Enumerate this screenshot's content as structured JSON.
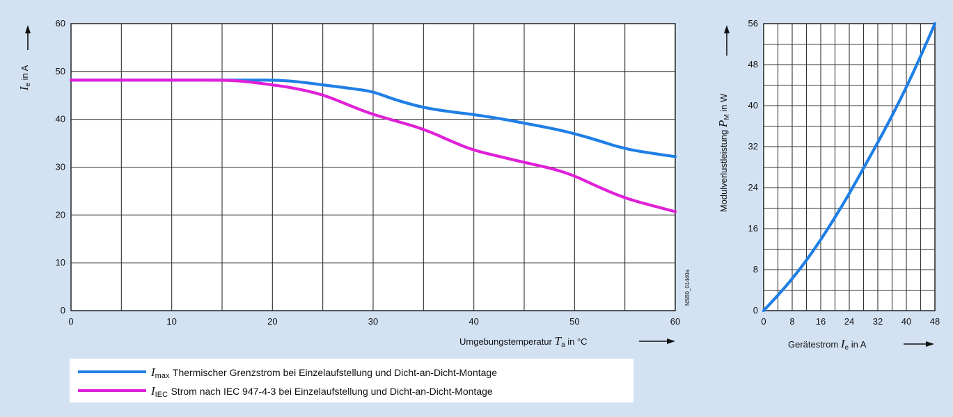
{
  "chart_data": [
    {
      "type": "line",
      "xlabel": {
        "text": "Umgebungstemperatur",
        "symbol": "T",
        "sub": "a",
        "unit": "in °C"
      },
      "ylabel": {
        "symbol": "I",
        "sub": "e",
        "unit": "in A"
      },
      "xlim": [
        0,
        60
      ],
      "ylim": [
        0,
        60
      ],
      "x_ticks": [
        0,
        10,
        20,
        30,
        40,
        50,
        60
      ],
      "y_ticks": [
        0,
        10,
        20,
        30,
        40,
        50,
        60
      ],
      "grid": true,
      "series": [
        {
          "name": "I max Thermischer Grenzstrom bei Einzelaufstellung und Dicht-an-Dicht-Montage",
          "color": "#1f7fe6",
          "x": [
            0,
            5,
            10,
            15,
            17,
            20,
            22,
            25,
            28,
            30,
            32,
            35,
            38,
            40,
            43,
            45,
            48,
            50,
            52,
            55,
            58,
            60
          ],
          "y": [
            48.2,
            48.2,
            48.2,
            48.2,
            48.2,
            48.2,
            48.0,
            47.2,
            46.4,
            45.8,
            44.2,
            42.4,
            41.5,
            41.0,
            40.0,
            39.2,
            38.0,
            37.0,
            35.8,
            33.8,
            32.8,
            32.2
          ]
        },
        {
          "name": "I IEC Strom nach IEC 947-4-3 bei Einzelaufstellung und Dicht-an-Dicht-Montage",
          "color": "#e020d8",
          "x": [
            0,
            5,
            10,
            15,
            17,
            20,
            22,
            25,
            28,
            30,
            32,
            35,
            38,
            40,
            43,
            45,
            48,
            50,
            52,
            55,
            58,
            60
          ],
          "y": [
            48.2,
            48.2,
            48.2,
            48.2,
            48.0,
            47.2,
            46.6,
            45.2,
            42.6,
            41.0,
            39.8,
            38.0,
            35.2,
            33.5,
            32.0,
            31.0,
            29.6,
            28.2,
            26.2,
            23.5,
            21.8,
            20.7
          ]
        }
      ],
      "side_note": "NSB0_01440a"
    },
    {
      "type": "line",
      "xlabel": {
        "text": "Gerätestrom",
        "symbol": "I",
        "sub": "e",
        "unit": "in A"
      },
      "ylabel": {
        "text": "Modulverlustleistung",
        "symbol": "P",
        "sub": "M",
        "unit": "in W"
      },
      "xlim": [
        0,
        48
      ],
      "ylim": [
        0,
        56
      ],
      "x_ticks": [
        0,
        8,
        16,
        24,
        32,
        40,
        48
      ],
      "y_ticks": [
        0,
        8,
        16,
        24,
        32,
        40,
        48,
        56
      ],
      "grid": true,
      "series": [
        {
          "color": "#1f7fe6",
          "x": [
            0,
            4,
            8,
            12,
            16,
            20,
            24,
            28,
            32,
            36,
            40,
            44,
            48
          ],
          "y": [
            0,
            3,
            6.2,
            9.8,
            13.8,
            18.2,
            22.8,
            27.8,
            32.8,
            38.0,
            43.6,
            49.6,
            56
          ]
        }
      ]
    }
  ],
  "legend": [
    {
      "color": "#1f7fe6",
      "symbol": "I",
      "sub": "max",
      "text": "Thermischer Grenzstrom bei Einzelaufstellung und Dicht-an-Dicht-Montage"
    },
    {
      "color": "#e020d8",
      "symbol": "I",
      "sub": "IEC",
      "text": "Strom nach IEC 947-4-3 bei Einzelaufstellung und Dicht-an-Dicht-Montage"
    }
  ]
}
